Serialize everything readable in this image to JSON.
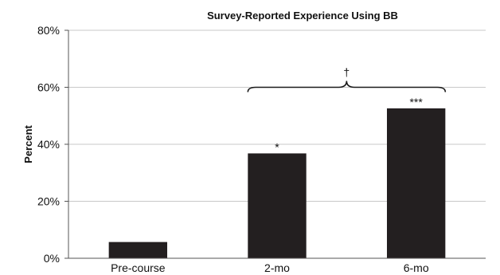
{
  "chart_data": {
    "type": "bar",
    "title": "Survey-Reported Experience Using BB",
    "ylabel": "Percent",
    "xlabel": "",
    "categories": [
      "Pre-course",
      "2-mo",
      "6-mo"
    ],
    "values": [
      5.7,
      36.8,
      52.6
    ],
    "ylim": [
      0,
      80
    ],
    "yticks": [
      0,
      20,
      40,
      60,
      80
    ],
    "ytick_labels": [
      "0%",
      "20%",
      "40%",
      "60%",
      "80%"
    ],
    "grid": true,
    "bar_color": "#231f20",
    "annotations": [
      {
        "category": "2-mo",
        "text": "*"
      },
      {
        "category": "6-mo",
        "text": "***"
      }
    ],
    "bracket": {
      "from": "2-mo",
      "to": "6-mo",
      "text": "†"
    }
  }
}
